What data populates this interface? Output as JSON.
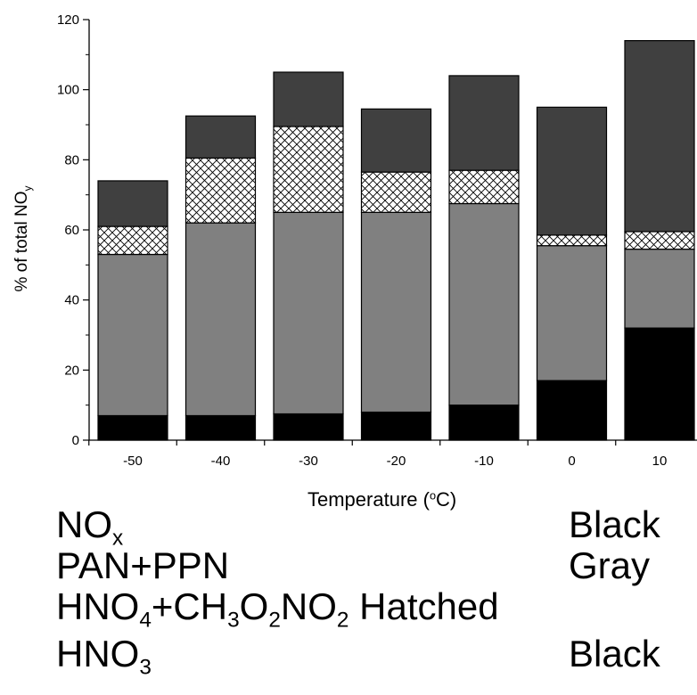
{
  "chart_data": {
    "type": "bar",
    "stacked": true,
    "categories": [
      "-50",
      "-40",
      "-30",
      "-20",
      "-10",
      "0",
      "10"
    ],
    "xlabel": {
      "text": "Temperature (",
      "sup": "o",
      "unit": "C)"
    },
    "ylabel": {
      "text": "% of total NO",
      "sub": "y"
    },
    "ylim": [
      0,
      120
    ],
    "yticks": [
      "0",
      "20",
      "40",
      "60",
      "80",
      "100",
      "120"
    ],
    "series": [
      {
        "name": "NOx",
        "color": "#000000",
        "values": [
          7,
          7,
          7.5,
          8,
          10,
          17,
          32
        ]
      },
      {
        "name": "PAN+PPN",
        "color": "#808080",
        "values": [
          46,
          55,
          57.5,
          57,
          57.5,
          38.5,
          22.5
        ]
      },
      {
        "name": "HNO4+CH3O2NO2",
        "color": "#ffffff",
        "pattern": "crosshatch",
        "values": [
          8,
          18.5,
          24.5,
          11.5,
          9.5,
          3,
          5
        ]
      },
      {
        "name": "HNO3",
        "color": "#404040",
        "values": [
          13,
          12,
          15.5,
          18,
          27,
          36.5,
          54.5
        ]
      }
    ]
  },
  "legend": {
    "rows": [
      {
        "parts": [
          {
            "t": "NO"
          },
          {
            "sub": "x"
          }
        ],
        "color_label": "Black"
      },
      {
        "parts": [
          {
            "t": "PAN+PPN"
          }
        ],
        "color_label": "Gray"
      },
      {
        "parts": [
          {
            "t": "HNO"
          },
          {
            "sub": "4"
          },
          {
            "t": "+CH"
          },
          {
            "sub": "3"
          },
          {
            "t": "O"
          },
          {
            "sub": "2"
          },
          {
            "t": "NO"
          },
          {
            "sub": "2"
          },
          {
            "t": " Hatched"
          }
        ],
        "color_label": ""
      },
      {
        "parts": [
          {
            "t": "HNO"
          },
          {
            "sub": "3"
          }
        ],
        "color_label": "Black"
      }
    ]
  }
}
